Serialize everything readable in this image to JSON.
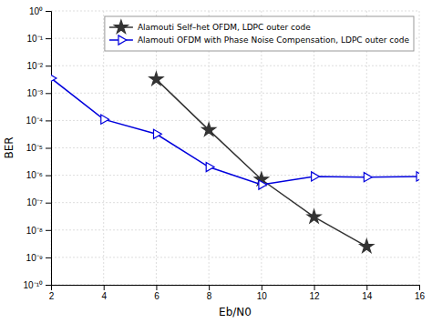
{
  "chart_data": {
    "type": "line",
    "x_label": "Eb/N0",
    "y_label": "BER",
    "log": "y",
    "grid": true,
    "legend": "upper-right",
    "xlim": [
      2,
      16
    ],
    "ylim": [
      1e-10,
      1
    ],
    "xticks": [
      2,
      4,
      6,
      8,
      10,
      12,
      14,
      16
    ],
    "yticks": [
      {
        "value": 1e-10,
        "label": "10⁻¹⁰"
      },
      {
        "value": 1e-09,
        "label": "10⁻⁹"
      },
      {
        "value": 1e-08,
        "label": "10⁻⁸"
      },
      {
        "value": 1e-07,
        "label": "10⁻⁷"
      },
      {
        "value": 1e-06,
        "label": "10⁻⁶"
      },
      {
        "value": 1e-05,
        "label": "10⁻⁵"
      },
      {
        "value": 0.0001,
        "label": "10⁻⁴"
      },
      {
        "value": 0.001,
        "label": "10⁻³"
      },
      {
        "value": 0.01,
        "label": "10⁻²"
      },
      {
        "value": 0.1,
        "label": "10⁻¹"
      },
      {
        "value": 1,
        "label": "10⁰"
      }
    ],
    "series": [
      {
        "name": "Alamouti Self–het OFDM, LDPC outer code",
        "color": "#333333",
        "marker": "star",
        "x": [
          6,
          8,
          10,
          12,
          14
        ],
        "values": [
          0.0032,
          4.5e-05,
          7e-07,
          3e-08,
          2.5e-09
        ]
      },
      {
        "name": "Alamouti OFDM with Phase Noise Compensation, LDPC outer code",
        "color": "#0000dd",
        "marker": "triangle-right",
        "x": [
          2,
          4,
          6,
          8,
          10,
          12,
          14,
          16
        ],
        "values": [
          0.0035,
          0.00011,
          3.2e-05,
          2e-06,
          4.5e-07,
          9e-07,
          8.5e-07,
          9e-07
        ]
      }
    ]
  }
}
